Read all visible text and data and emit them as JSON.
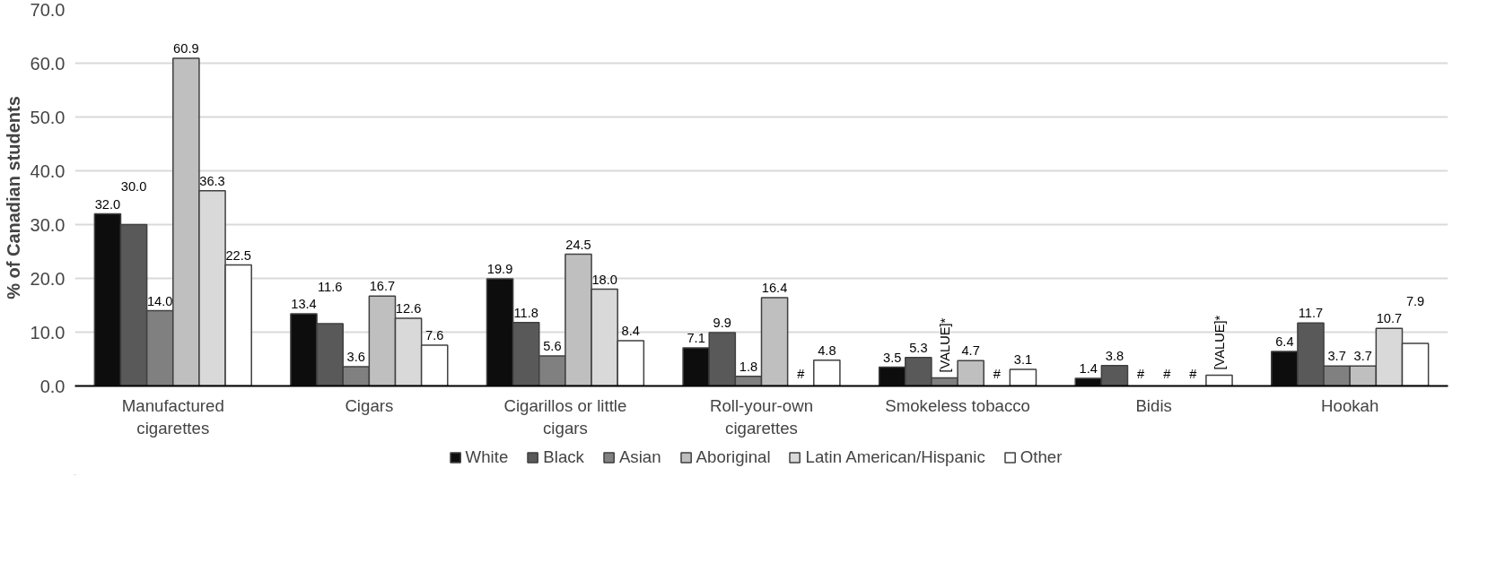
{
  "chart_data": {
    "type": "bar",
    "ylabel": "% of Canadian students",
    "categories": [
      "Manufactured cigarettes",
      "Cigars",
      "Cigarillos or little cigars",
      "Roll-your-own cigarettes",
      "Smokeless tobacco",
      "Bidis",
      "Hookah"
    ],
    "series": [
      {
        "name": "White",
        "color": "#0d0d0d",
        "values": [
          32.0,
          13.4,
          19.9,
          7.1,
          3.5,
          1.4,
          6.4
        ],
        "value_labels": [
          "32.0",
          "13.4",
          "19.9",
          "7.1",
          "3.5",
          "1.4",
          "6.4"
        ]
      },
      {
        "name": "Black",
        "color": "#595959",
        "values": [
          30.0,
          11.6,
          11.8,
          9.9,
          5.3,
          3.8,
          11.7
        ],
        "value_labels": [
          "30.0",
          "11.6",
          "11.8",
          "9.9",
          "5.3",
          "3.8",
          "11.7"
        ]
      },
      {
        "name": "Asian",
        "color": "#808080",
        "values": [
          14.0,
          3.6,
          5.6,
          1.8,
          1.5,
          null,
          3.7
        ],
        "value_labels": [
          "14.0",
          "3.6",
          "5.6",
          "1.8",
          "[VALUE]*",
          "#",
          "3.7"
        ]
      },
      {
        "name": "Aboriginal",
        "color": "#bfbfbf",
        "values": [
          60.9,
          16.7,
          24.5,
          16.4,
          4.7,
          null,
          3.7
        ],
        "value_labels": [
          "60.9",
          "16.7",
          "24.5",
          "16.4",
          "4.7",
          "#",
          "3.7"
        ]
      },
      {
        "name": "Latin American/Hispanic",
        "color": "#d9d9d9",
        "values": [
          36.3,
          12.6,
          18.0,
          null,
          null,
          null,
          10.7
        ],
        "value_labels": [
          "36.3",
          "12.6",
          "18.0",
          "#",
          "#",
          "#",
          "10.7"
        ]
      },
      {
        "name": "Other",
        "color": "#ffffff",
        "values": [
          22.5,
          7.6,
          8.4,
          4.8,
          3.1,
          2,
          7.9
        ],
        "value_labels": [
          "22.5",
          "7.6",
          "8.4",
          "4.8",
          "3.1",
          "[VALUE]*",
          "7.9"
        ]
      }
    ],
    "ylim": [
      0,
      70
    ],
    "yticks": [
      {
        "value": 0,
        "label": "0.0"
      },
      {
        "value": 10,
        "label": "10.0"
      },
      {
        "value": 20,
        "label": "20.0"
      },
      {
        "value": 30,
        "label": "30.0"
      },
      {
        "value": 40,
        "label": "40.0"
      },
      {
        "value": 50,
        "label": "50.0"
      },
      {
        "value": 60,
        "label": "60.0"
      },
      {
        "value": 70,
        "label": "70.0"
      }
    ],
    "grid": "y",
    "legend": "bottom"
  }
}
